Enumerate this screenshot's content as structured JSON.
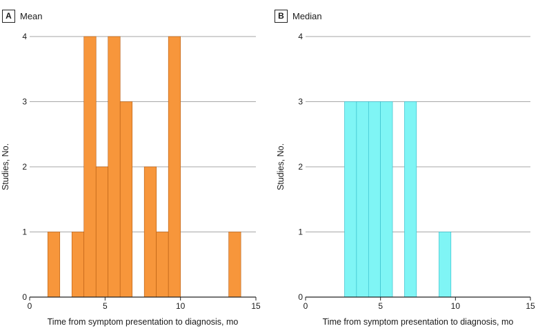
{
  "chart_data": [
    {
      "panel": "A",
      "title": "Mean",
      "type": "bar",
      "xlabel": "Time from symptom presentation to diagnosis, mo",
      "ylabel": "Studies, No.",
      "xlim": [
        0,
        15
      ],
      "ylim": [
        0,
        4
      ],
      "xticks": [
        0,
        5,
        10,
        15
      ],
      "yticks": [
        0,
        1,
        2,
        3,
        4
      ],
      "bin_width": 0.8,
      "color": "#f7963b",
      "edge_color": "#b45a10",
      "bins": [
        {
          "start": 1.2,
          "end": 2.0,
          "value": 1
        },
        {
          "start": 2.8,
          "end": 3.6,
          "value": 1
        },
        {
          "start": 3.6,
          "end": 4.4,
          "value": 4
        },
        {
          "start": 4.4,
          "end": 5.2,
          "value": 2
        },
        {
          "start": 5.2,
          "end": 6.0,
          "value": 4
        },
        {
          "start": 6.0,
          "end": 6.8,
          "value": 3
        },
        {
          "start": 7.6,
          "end": 8.4,
          "value": 2
        },
        {
          "start": 8.4,
          "end": 9.2,
          "value": 1
        },
        {
          "start": 9.2,
          "end": 10.0,
          "value": 4
        },
        {
          "start": 13.2,
          "end": 14.0,
          "value": 1
        }
      ]
    },
    {
      "panel": "B",
      "title": "Median",
      "type": "bar",
      "xlabel": "Time from symptom presentation to diagnosis, mo",
      "ylabel": "Studies, No.",
      "xlim": [
        0,
        15
      ],
      "ylim": [
        0,
        4
      ],
      "xticks": [
        0,
        5,
        10,
        15
      ],
      "yticks": [
        0,
        1,
        2,
        3,
        4
      ],
      "bin_width": 0.8,
      "color": "#7ff5f5",
      "edge_color": "#2fb8c8",
      "bins": [
        {
          "start": 2.6,
          "end": 3.4,
          "value": 3
        },
        {
          "start": 3.4,
          "end": 4.2,
          "value": 3
        },
        {
          "start": 4.2,
          "end": 5.0,
          "value": 3
        },
        {
          "start": 5.0,
          "end": 5.8,
          "value": 3
        },
        {
          "start": 6.6,
          "end": 7.4,
          "value": 3
        },
        {
          "start": 8.9,
          "end": 9.7,
          "value": 1
        }
      ]
    }
  ]
}
